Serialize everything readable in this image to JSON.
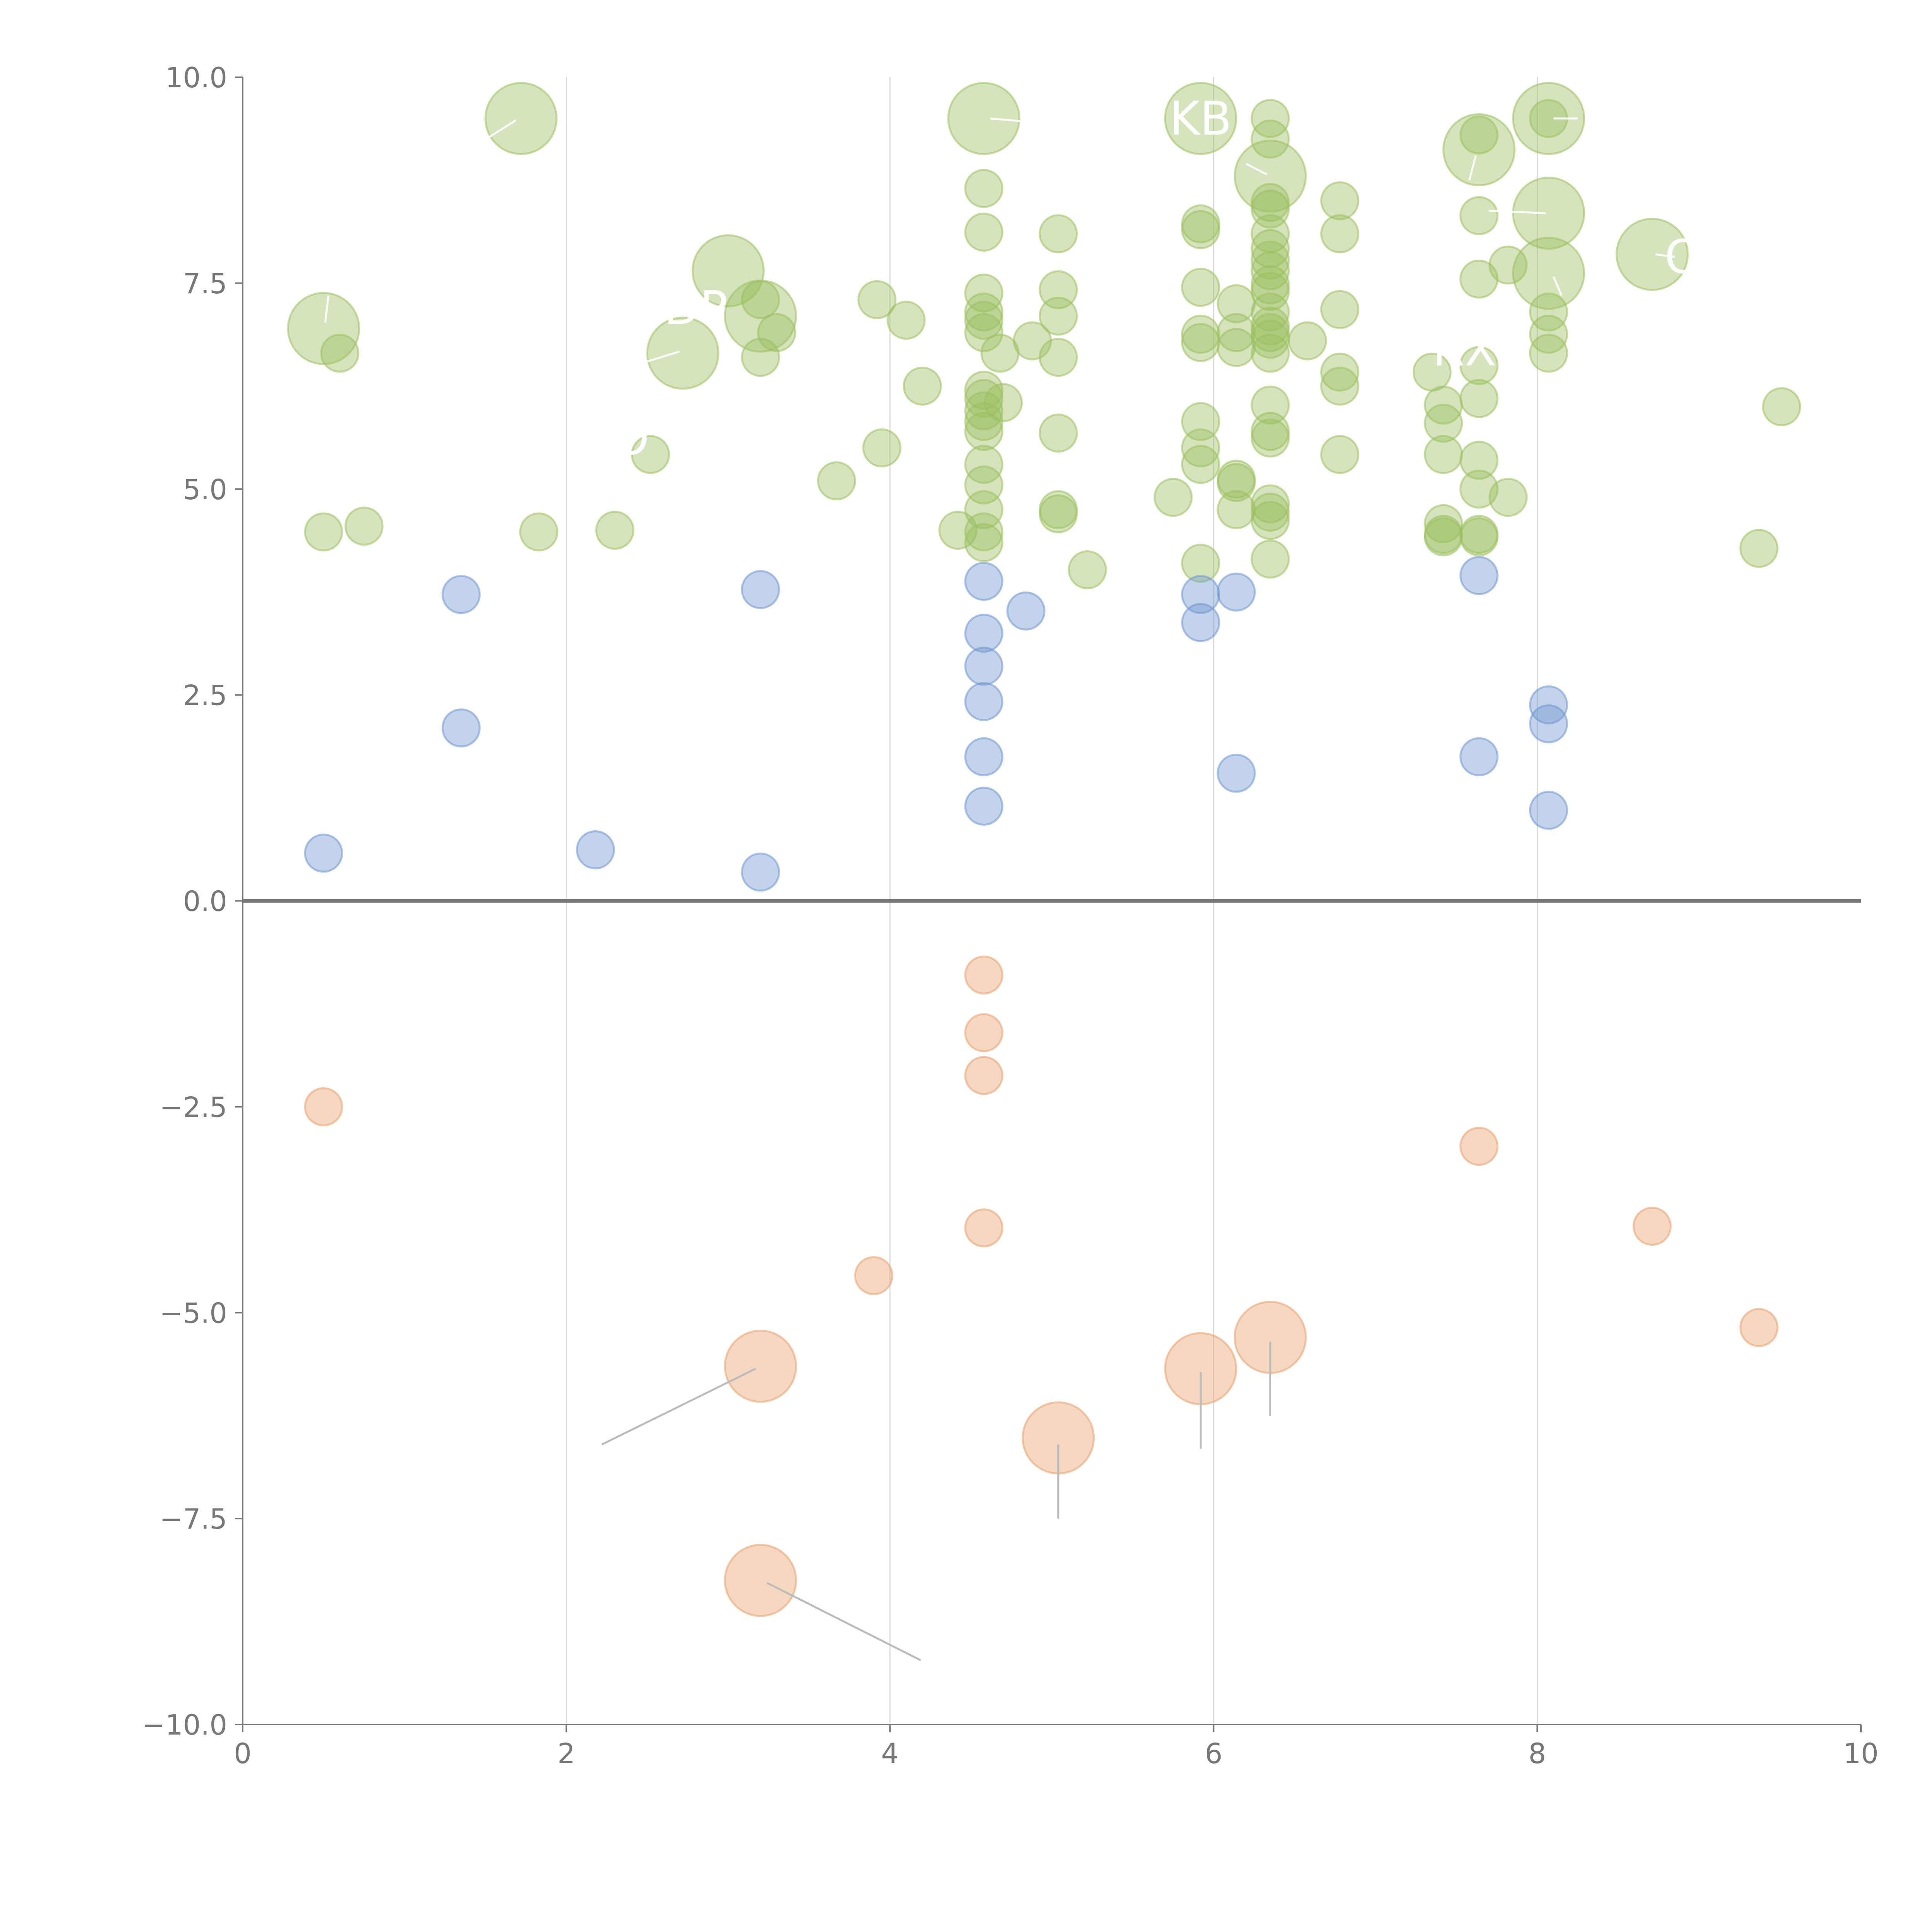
{
  "chart_data": {
    "type": "scatter",
    "title": "",
    "xlabel": "",
    "ylabel": "",
    "xlim": [
      0,
      10
    ],
    "ylim": [
      -10,
      10
    ],
    "xticks": [
      "0",
      "2",
      "4",
      "6",
      "8",
      "10"
    ],
    "yticks": [
      "10.0",
      "7.5",
      "5.0",
      "2.5",
      "0.0",
      "−2.5",
      "−5.0",
      "−7.5",
      "−10.0"
    ],
    "grid": "vertical lines at x ticks",
    "colors": {
      "green": "#9cbf5f",
      "blue": "#6f95cf",
      "orange": "#e7a06d",
      "axis": "#777777",
      "grid": "#d9d9d9"
    },
    "series": [
      {
        "name": "green",
        "color": "#9cbf5f",
        "points": [
          {
            "x": 0.5,
            "y": 4.48
          },
          {
            "x": 0.75,
            "y": 4.55
          },
          {
            "x": 0.6,
            "y": 6.65
          },
          {
            "x": 1.83,
            "y": 4.48
          },
          {
            "x": 2.3,
            "y": 4.5
          },
          {
            "x": 2.52,
            "y": 5.42
          },
          {
            "x": 3.2,
            "y": 6.6
          },
          {
            "x": 3.2,
            "y": 7.3
          },
          {
            "x": 3.3,
            "y": 6.9
          },
          {
            "x": 3.67,
            "y": 5.1
          },
          {
            "x": 3.92,
            "y": 7.3
          },
          {
            "x": 3.95,
            "y": 5.5
          },
          {
            "x": 4.1,
            "y": 7.05
          },
          {
            "x": 4.2,
            "y": 6.25
          },
          {
            "x": 4.42,
            "y": 4.5
          },
          {
            "x": 4.58,
            "y": 8.65
          },
          {
            "x": 4.58,
            "y": 8.12
          },
          {
            "x": 4.58,
            "y": 7.38
          },
          {
            "x": 4.58,
            "y": 7.15
          },
          {
            "x": 4.58,
            "y": 7.05
          },
          {
            "x": 4.58,
            "y": 6.9
          },
          {
            "x": 4.58,
            "y": 6.2
          },
          {
            "x": 4.58,
            "y": 6.1
          },
          {
            "x": 4.58,
            "y": 5.95
          },
          {
            "x": 4.58,
            "y": 5.82
          },
          {
            "x": 4.58,
            "y": 5.7
          },
          {
            "x": 4.58,
            "y": 5.3
          },
          {
            "x": 4.58,
            "y": 5.05
          },
          {
            "x": 4.58,
            "y": 4.75
          },
          {
            "x": 4.58,
            "y": 4.48
          },
          {
            "x": 4.58,
            "y": 4.35
          },
          {
            "x": 4.68,
            "y": 6.65
          },
          {
            "x": 4.7,
            "y": 6.05
          },
          {
            "x": 4.88,
            "y": 6.8
          },
          {
            "x": 5.04,
            "y": 8.1
          },
          {
            "x": 5.04,
            "y": 7.42
          },
          {
            "x": 5.04,
            "y": 7.1
          },
          {
            "x": 5.04,
            "y": 6.6
          },
          {
            "x": 5.04,
            "y": 5.68
          },
          {
            "x": 5.04,
            "y": 4.75
          },
          {
            "x": 5.04,
            "y": 4.7
          },
          {
            "x": 5.22,
            "y": 4.02
          },
          {
            "x": 5.75,
            "y": 4.9
          },
          {
            "x": 5.92,
            "y": 8.22
          },
          {
            "x": 5.92,
            "y": 8.15
          },
          {
            "x": 5.92,
            "y": 7.45
          },
          {
            "x": 5.92,
            "y": 6.88
          },
          {
            "x": 5.92,
            "y": 6.78
          },
          {
            "x": 5.92,
            "y": 5.82
          },
          {
            "x": 5.92,
            "y": 5.5
          },
          {
            "x": 5.92,
            "y": 5.3
          },
          {
            "x": 5.92,
            "y": 4.1
          },
          {
            "x": 6.14,
            "y": 7.25
          },
          {
            "x": 6.14,
            "y": 6.9
          },
          {
            "x": 6.14,
            "y": 6.72
          },
          {
            "x": 6.14,
            "y": 5.12
          },
          {
            "x": 6.14,
            "y": 5.08
          },
          {
            "x": 6.14,
            "y": 4.75
          },
          {
            "x": 6.35,
            "y": 9.5
          },
          {
            "x": 6.35,
            "y": 9.25
          },
          {
            "x": 6.35,
            "y": 8.48
          },
          {
            "x": 6.35,
            "y": 8.4
          },
          {
            "x": 6.35,
            "y": 8.1
          },
          {
            "x": 6.35,
            "y": 7.92
          },
          {
            "x": 6.35,
            "y": 7.78
          },
          {
            "x": 6.35,
            "y": 7.65
          },
          {
            "x": 6.35,
            "y": 7.48
          },
          {
            "x": 6.35,
            "y": 7.4
          },
          {
            "x": 6.35,
            "y": 7.15
          },
          {
            "x": 6.35,
            "y": 6.98
          },
          {
            "x": 6.35,
            "y": 6.9
          },
          {
            "x": 6.35,
            "y": 6.82
          },
          {
            "x": 6.35,
            "y": 6.65
          },
          {
            "x": 6.35,
            "y": 6.02
          },
          {
            "x": 6.35,
            "y": 5.7
          },
          {
            "x": 6.35,
            "y": 5.62
          },
          {
            "x": 6.35,
            "y": 4.82
          },
          {
            "x": 6.35,
            "y": 4.72
          },
          {
            "x": 6.35,
            "y": 4.62
          },
          {
            "x": 6.35,
            "y": 4.15
          },
          {
            "x": 6.58,
            "y": 6.8
          },
          {
            "x": 6.78,
            "y": 8.5
          },
          {
            "x": 6.78,
            "y": 8.1
          },
          {
            "x": 6.78,
            "y": 7.18
          },
          {
            "x": 6.78,
            "y": 6.42
          },
          {
            "x": 6.78,
            "y": 6.25
          },
          {
            "x": 6.78,
            "y": 5.42
          },
          {
            "x": 7.35,
            "y": 6.42
          },
          {
            "x": 7.42,
            "y": 6.02
          },
          {
            "x": 7.42,
            "y": 5.8
          },
          {
            "x": 7.42,
            "y": 5.42
          },
          {
            "x": 7.42,
            "y": 4.58
          },
          {
            "x": 7.42,
            "y": 4.45
          },
          {
            "x": 7.42,
            "y": 4.42
          },
          {
            "x": 7.64,
            "y": 9.3
          },
          {
            "x": 7.64,
            "y": 8.32
          },
          {
            "x": 7.64,
            "y": 7.55
          },
          {
            "x": 7.64,
            "y": 6.5
          },
          {
            "x": 7.64,
            "y": 6.1
          },
          {
            "x": 7.64,
            "y": 5.35
          },
          {
            "x": 7.64,
            "y": 5.0
          },
          {
            "x": 7.64,
            "y": 4.45
          },
          {
            "x": 7.64,
            "y": 4.42
          },
          {
            "x": 7.82,
            "y": 7.72
          },
          {
            "x": 7.82,
            "y": 4.9
          },
          {
            "x": 8.07,
            "y": 9.5
          },
          {
            "x": 8.07,
            "y": 7.15
          },
          {
            "x": 8.07,
            "y": 6.88
          },
          {
            "x": 8.07,
            "y": 6.65
          },
          {
            "x": 9.37,
            "y": 4.28
          },
          {
            "x": 9.51,
            "y": 6.0
          }
        ]
      },
      {
        "name": "green-large",
        "color": "#9cbf5f",
        "points": [
          {
            "x": 0.5,
            "y": 6.95
          },
          {
            "x": 1.72,
            "y": 9.5
          },
          {
            "x": 3.0,
            "y": 7.65
          },
          {
            "x": 3.2,
            "y": 7.1
          },
          {
            "x": 2.72,
            "y": 6.65
          },
          {
            "x": 4.58,
            "y": 9.5
          },
          {
            "x": 5.92,
            "y": 9.5
          },
          {
            "x": 6.35,
            "y": 8.8
          },
          {
            "x": 7.64,
            "y": 9.12
          },
          {
            "x": 8.07,
            "y": 9.5
          },
          {
            "x": 8.07,
            "y": 8.35
          },
          {
            "x": 8.07,
            "y": 7.62
          },
          {
            "x": 8.71,
            "y": 7.85
          }
        ]
      },
      {
        "name": "blue",
        "color": "#6f95cf",
        "points": [
          {
            "x": 0.5,
            "y": 0.58
          },
          {
            "x": 1.35,
            "y": 3.72
          },
          {
            "x": 1.35,
            "y": 2.1
          },
          {
            "x": 2.18,
            "y": 0.62
          },
          {
            "x": 3.2,
            "y": 3.78
          },
          {
            "x": 3.2,
            "y": 0.35
          },
          {
            "x": 4.58,
            "y": 3.88
          },
          {
            "x": 4.58,
            "y": 3.25
          },
          {
            "x": 4.58,
            "y": 2.85
          },
          {
            "x": 4.58,
            "y": 2.42
          },
          {
            "x": 4.58,
            "y": 1.75
          },
          {
            "x": 4.58,
            "y": 1.15
          },
          {
            "x": 4.84,
            "y": 3.52
          },
          {
            "x": 5.92,
            "y": 3.72
          },
          {
            "x": 5.92,
            "y": 3.38
          },
          {
            "x": 6.14,
            "y": 3.75
          },
          {
            "x": 6.14,
            "y": 1.55
          },
          {
            "x": 7.64,
            "y": 3.95
          },
          {
            "x": 7.64,
            "y": 1.75
          },
          {
            "x": 8.07,
            "y": 2.38
          },
          {
            "x": 8.07,
            "y": 2.15
          },
          {
            "x": 8.07,
            "y": 1.1
          }
        ]
      },
      {
        "name": "orange",
        "color": "#e7a06d",
        "points": [
          {
            "x": 0.5,
            "y": -2.5
          },
          {
            "x": 3.9,
            "y": -4.55
          },
          {
            "x": 4.58,
            "y": -0.9
          },
          {
            "x": 4.58,
            "y": -1.6
          },
          {
            "x": 4.58,
            "y": -2.12
          },
          {
            "x": 4.58,
            "y": -3.97
          },
          {
            "x": 7.64,
            "y": -2.98
          },
          {
            "x": 8.71,
            "y": -3.95
          },
          {
            "x": 9.37,
            "y": -5.18
          }
        ]
      },
      {
        "name": "orange-large",
        "color": "#e7a06d",
        "points": [
          {
            "x": 3.2,
            "y": -5.65
          },
          {
            "x": 3.2,
            "y": -8.25
          },
          {
            "x": 5.04,
            "y": -6.52
          },
          {
            "x": 5.92,
            "y": -5.68
          },
          {
            "x": 6.35,
            "y": -5.3
          }
        ]
      }
    ],
    "labels": [
      {
        "text": "KB",
        "x": 5.92,
        "y": 9.5
      },
      {
        "text": "DP",
        "x": 2.8,
        "y": 7.2
      },
      {
        "text": "RX",
        "x": 7.55,
        "y": 6.7
      },
      {
        "text": "O",
        "x": 8.9,
        "y": 7.82
      },
      {
        "text": "O",
        "x": 2.4,
        "y": 5.62
      }
    ],
    "leader_lines": [
      {
        "color": "#bbbbbb",
        "from": [
          2.22,
          -6.6
        ],
        "to": [
          3.17,
          -5.68
        ]
      },
      {
        "color": "#bbbbbb",
        "from": [
          4.19,
          -9.22
        ],
        "to": [
          3.24,
          -8.28
        ]
      },
      {
        "color": "#bbbbbb",
        "from": [
          5.04,
          -7.5
        ],
        "to": [
          5.04,
          -6.6
        ]
      },
      {
        "color": "#bbbbbb",
        "from": [
          5.92,
          -6.65
        ],
        "to": [
          5.92,
          -5.72
        ]
      },
      {
        "color": "#bbbbbb",
        "from": [
          6.35,
          -6.25
        ],
        "to": [
          6.35,
          -5.35
        ]
      },
      {
        "color": "#ffffff",
        "from": [
          1.52,
          9.27
        ],
        "to": [
          1.69,
          9.48
        ]
      },
      {
        "color": "#ffffff",
        "from": [
          0.51,
          7.02
        ],
        "to": [
          0.53,
          7.35
        ]
      },
      {
        "color": "#ffffff",
        "from": [
          2.5,
          6.55
        ],
        "to": [
          2.7,
          6.67
        ]
      },
      {
        "color": "#ffffff",
        "from": [
          4.62,
          9.5
        ],
        "to": [
          5.2,
          9.4
        ]
      },
      {
        "color": "#ffffff",
        "from": [
          6.2,
          8.95
        ],
        "to": [
          6.33,
          8.82
        ]
      },
      {
        "color": "#ffffff",
        "from": [
          7.58,
          8.75
        ],
        "to": [
          7.62,
          9.05
        ]
      },
      {
        "color": "#ffffff",
        "from": [
          8.1,
          9.5
        ],
        "to": [
          8.25,
          9.5
        ]
      },
      {
        "color": "#ffffff",
        "from": [
          7.7,
          8.38
        ],
        "to": [
          8.05,
          8.35
        ]
      },
      {
        "color": "#ffffff",
        "from": [
          8.1,
          7.58
        ],
        "to": [
          8.15,
          7.35
        ]
      },
      {
        "color": "#ffffff",
        "from": [
          8.73,
          7.85
        ],
        "to": [
          8.85,
          7.82
        ]
      }
    ]
  }
}
